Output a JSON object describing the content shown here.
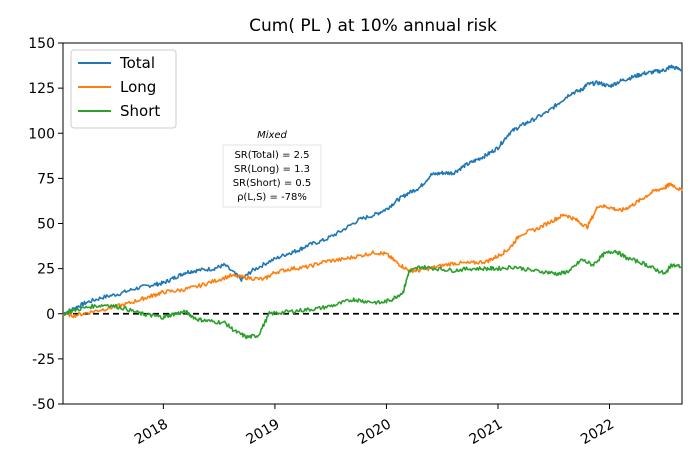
{
  "chart_data": {
    "type": "line",
    "title": "Cum( PL ) at 10% annual risk",
    "xlabel": "",
    "ylabel": "",
    "ylim": [
      -50,
      150
    ],
    "yticks": [
      -50,
      -25,
      0,
      25,
      50,
      75,
      100,
      125,
      150
    ],
    "xlim": [
      2017.1,
      2022.65
    ],
    "xticks": [
      {
        "value": 2018.0,
        "label": "2018"
      },
      {
        "value": 2019.0,
        "label": "2019"
      },
      {
        "value": 2020.0,
        "label": "2020"
      },
      {
        "value": 2021.0,
        "label": "2021"
      },
      {
        "value": 2022.0,
        "label": "2022"
      }
    ],
    "legend": {
      "placement": "top-left"
    },
    "zero_line": {
      "y": 0,
      "style": "dashed",
      "color": "#000000"
    },
    "series": [
      {
        "name": "Total",
        "color": "#1f77b4",
        "x": [
          2017.1,
          2017.2,
          2017.3,
          2017.45,
          2017.6,
          2017.75,
          2017.9,
          2018.0,
          2018.1,
          2018.2,
          2018.3,
          2018.45,
          2018.55,
          2018.7,
          2018.8,
          2018.95,
          2019.1,
          2019.2,
          2019.3,
          2019.45,
          2019.6,
          2019.75,
          2019.9,
          2020.0,
          2020.1,
          2020.2,
          2020.3,
          2020.4,
          2020.5,
          2020.6,
          2020.7,
          2020.8,
          2020.9,
          2021.0,
          2021.1,
          2021.2,
          2021.3,
          2021.45,
          2021.55,
          2021.65,
          2021.75,
          2021.8,
          2021.9,
          2022.0,
          2022.1,
          2022.2,
          2022.3,
          2022.4,
          2022.5,
          2022.55,
          2022.65
        ],
        "y": [
          0,
          3,
          6,
          9,
          11,
          14,
          16,
          17,
          20,
          23,
          24,
          25,
          27,
          19,
          24,
          29,
          33,
          35,
          38,
          41,
          46,
          52,
          55,
          58,
          63,
          67,
          70,
          77,
          78,
          78,
          82,
          85,
          88,
          92,
          100,
          104,
          107,
          112,
          117,
          122,
          124,
          127,
          128,
          126,
          129,
          131,
          133,
          134,
          135,
          137,
          135
        ]
      },
      {
        "name": "Long",
        "color": "#ff7f0e",
        "x": [
          2017.1,
          2017.2,
          2017.35,
          2017.5,
          2017.65,
          2017.8,
          2017.9,
          2018.0,
          2018.15,
          2018.3,
          2018.45,
          2018.6,
          2018.75,
          2018.9,
          2019.0,
          2019.15,
          2019.3,
          2019.45,
          2019.6,
          2019.75,
          2019.9,
          2020.0,
          2020.1,
          2020.2,
          2020.3,
          2020.45,
          2020.6,
          2020.75,
          2020.9,
          2021.0,
          2021.1,
          2021.2,
          2021.35,
          2021.5,
          2021.6,
          2021.7,
          2021.8,
          2021.9,
          2022.0,
          2022.1,
          2022.2,
          2022.3,
          2022.4,
          2022.5,
          2022.55,
          2022.65
        ],
        "y": [
          0,
          -1,
          1,
          3,
          5,
          8,
          10,
          12,
          13,
          15,
          18,
          21,
          20,
          19,
          23,
          25,
          26,
          29,
          30,
          32,
          34,
          33,
          28,
          24,
          24,
          26,
          28,
          28,
          29,
          32,
          36,
          44,
          47,
          52,
          55,
          52,
          48,
          60,
          59,
          57,
          60,
          64,
          68,
          70,
          72,
          68
        ]
      },
      {
        "name": "Short",
        "color": "#2ca02c",
        "x": [
          2017.1,
          2017.2,
          2017.35,
          2017.5,
          2017.65,
          2017.8,
          2017.9,
          2018.0,
          2018.1,
          2018.2,
          2018.3,
          2018.4,
          2018.55,
          2018.65,
          2018.75,
          2018.85,
          2018.95,
          2019.1,
          2019.25,
          2019.4,
          2019.55,
          2019.7,
          2019.8,
          2019.95,
          2020.05,
          2020.15,
          2020.2,
          2020.3,
          2020.45,
          2020.6,
          2020.75,
          2020.9,
          2021.0,
          2021.15,
          2021.3,
          2021.45,
          2021.55,
          2021.65,
          2021.75,
          2021.85,
          2021.95,
          2022.05,
          2022.15,
          2022.3,
          2022.4,
          2022.5,
          2022.55,
          2022.65
        ],
        "y": [
          0,
          2,
          4,
          5,
          3,
          0,
          -1,
          -2,
          0,
          1,
          -3,
          -4,
          -5,
          -10,
          -13,
          -12,
          0,
          1,
          2,
          3,
          5,
          8,
          7,
          6,
          8,
          12,
          23,
          26,
          25,
          24,
          25,
          25,
          25,
          26,
          24,
          23,
          22,
          24,
          30,
          27,
          33,
          35,
          31,
          28,
          25,
          22,
          27,
          26
        ]
      }
    ],
    "annotation": {
      "title": "Mixed",
      "lines": [
        {
          "text": "SR(Total) = 2.5",
          "color": "#1f77b4"
        },
        {
          "text": "SR(Long) = 1.3",
          "color": "#ff7f0e"
        },
        {
          "text": "SR(Short) = 0.5",
          "color": "#2ca02c"
        },
        {
          "text": "ρ(L,S) = -78%",
          "color": "#000000"
        }
      ]
    }
  }
}
